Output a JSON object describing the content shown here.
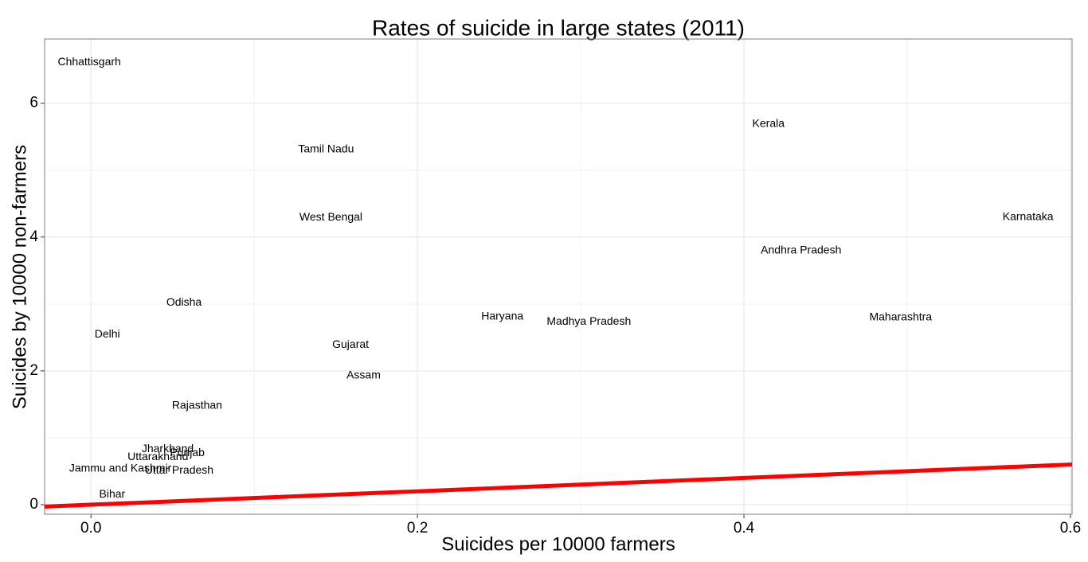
{
  "chart_data": {
    "type": "scatter",
    "title": "Rates of suicide in large states (2011)",
    "x_label": "Suicides per 10000 farmers",
    "y_label": "Suicides by 10000 non-farmers",
    "labels": [
      "Chhattisgarh",
      "Tamil Nadu",
      "West Bengal",
      "Kerala",
      "Karnataka",
      "Andhra Pradesh",
      "Maharashtra",
      "Haryana",
      "Madhya Pradesh",
      "Odisha",
      "Delhi",
      "Gujarat",
      "Assam",
      "Rajasthan",
      "Jharkhand",
      "Punjab",
      "Uttarakhand",
      "Jammu and Kashmir",
      "Uttar Pradesh",
      "Bihar"
    ],
    "x": [
      -0.001,
      0.144,
      0.147,
      0.415,
      0.574,
      0.435,
      0.496,
      0.252,
      0.305,
      0.057,
      0.01,
      0.159,
      0.167,
      0.065,
      0.047,
      0.059,
      0.041,
      0.018,
      0.054,
      0.013
    ],
    "values": [
      6.61,
      5.31,
      4.29,
      5.69,
      4.3,
      3.8,
      2.8,
      2.81,
      2.73,
      3.02,
      2.54,
      2.39,
      1.93,
      1.48,
      0.83,
      0.77,
      0.71,
      0.54,
      0.51,
      0.15
    ],
    "xlim": [
      -0.0284,
      0.601
    ],
    "ylim": [
      -0.143,
      6.96
    ],
    "xticks": [
      {
        "value": 0,
        "label": "0.0"
      },
      0.2,
      0.4,
      0.6
    ],
    "yticks": [
      0,
      2,
      4,
      6
    ],
    "x_minor_grid": [
      0.1,
      0.3,
      0.5
    ],
    "y_minor_grid": [
      1,
      3,
      5
    ],
    "grid": true,
    "lines": [
      {
        "slope": 1,
        "intercept": 0,
        "color": "#ff0000"
      }
    ]
  }
}
